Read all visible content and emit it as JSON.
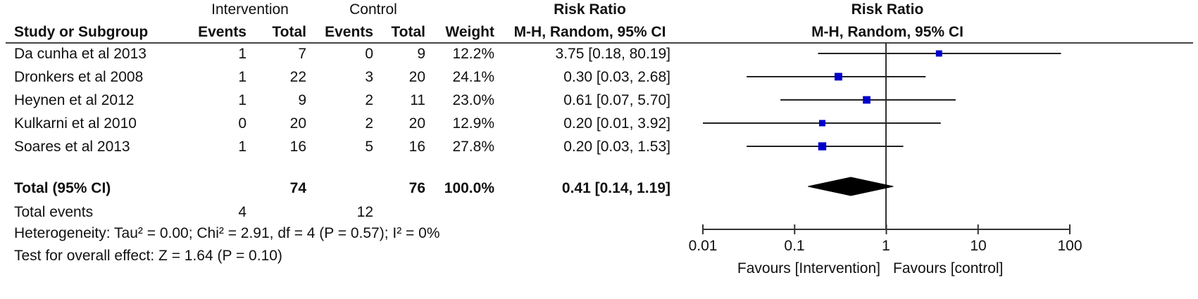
{
  "headers": {
    "intervention": "Intervention",
    "control": "Control",
    "risk_ratio_left": "Risk Ratio",
    "risk_ratio_right": "Risk Ratio",
    "study_col": "Study or Subgroup",
    "events_i": "Events",
    "total_i": "Total",
    "events_c": "Events",
    "total_c": "Total",
    "weight": "Weight",
    "method_left": "M-H, Random, 95% CI",
    "method_right": "M-H, Random, 95% CI"
  },
  "studies": [
    {
      "name": "Da cunha et al 2013",
      "ie": "1",
      "it": "7",
      "ce": "0",
      "ct": "9",
      "weight": "12.2%",
      "ci_text": "3.75 [0.18, 80.19]"
    },
    {
      "name": "Dronkers et al 2008",
      "ie": "1",
      "it": "22",
      "ce": "3",
      "ct": "20",
      "weight": "24.1%",
      "ci_text": "0.30 [0.03, 2.68]"
    },
    {
      "name": "Heynen et al 2012",
      "ie": "1",
      "it": "9",
      "ce": "2",
      "ct": "11",
      "weight": "23.0%",
      "ci_text": "0.61 [0.07, 5.70]"
    },
    {
      "name": "Kulkarni et al 2010",
      "ie": "0",
      "it": "20",
      "ce": "2",
      "ct": "20",
      "weight": "12.9%",
      "ci_text": "0.20 [0.01, 3.92]"
    },
    {
      "name": "Soares et al 2013",
      "ie": "1",
      "it": "16",
      "ce": "5",
      "ct": "16",
      "weight": "27.8%",
      "ci_text": "0.20 [0.03, 1.53]"
    }
  ],
  "total": {
    "label": "Total (95% CI)",
    "it": "74",
    "ct": "76",
    "weight": "100.0%",
    "ci_text": "0.41 [0.14, 1.19]"
  },
  "total_events": {
    "label": "Total events",
    "ie": "4",
    "ce": "12"
  },
  "heterogeneity": "Heterogeneity: Tau² = 0.00; Chi² = 2.91, df = 4 (P = 0.57); I² = 0%",
  "overall_effect": "Test for overall effect: Z = 1.64 (P = 0.10)",
  "chart_data": {
    "type": "scatter",
    "scale": "log",
    "xlim": [
      0.01,
      100
    ],
    "ticks": [
      "0.01",
      "0.1",
      "1",
      "10",
      "100"
    ],
    "tick_values": [
      0.01,
      0.1,
      1,
      10,
      100
    ],
    "favours_left": "Favours [Intervention]",
    "favours_right": "Favours [control]",
    "points": [
      {
        "rr": 3.75,
        "lo": 0.18,
        "hi": 80.19,
        "weight": 12.2
      },
      {
        "rr": 0.3,
        "lo": 0.03,
        "hi": 2.68,
        "weight": 24.1
      },
      {
        "rr": 0.61,
        "lo": 0.07,
        "hi": 5.7,
        "weight": 23.0
      },
      {
        "rr": 0.2,
        "lo": 0.01,
        "hi": 3.92,
        "weight": 12.9
      },
      {
        "rr": 0.2,
        "lo": 0.03,
        "hi": 1.53,
        "weight": 27.8
      }
    ],
    "pooled": {
      "rr": 0.41,
      "lo": 0.14,
      "hi": 1.19
    },
    "marker_color": "#0000cc"
  }
}
